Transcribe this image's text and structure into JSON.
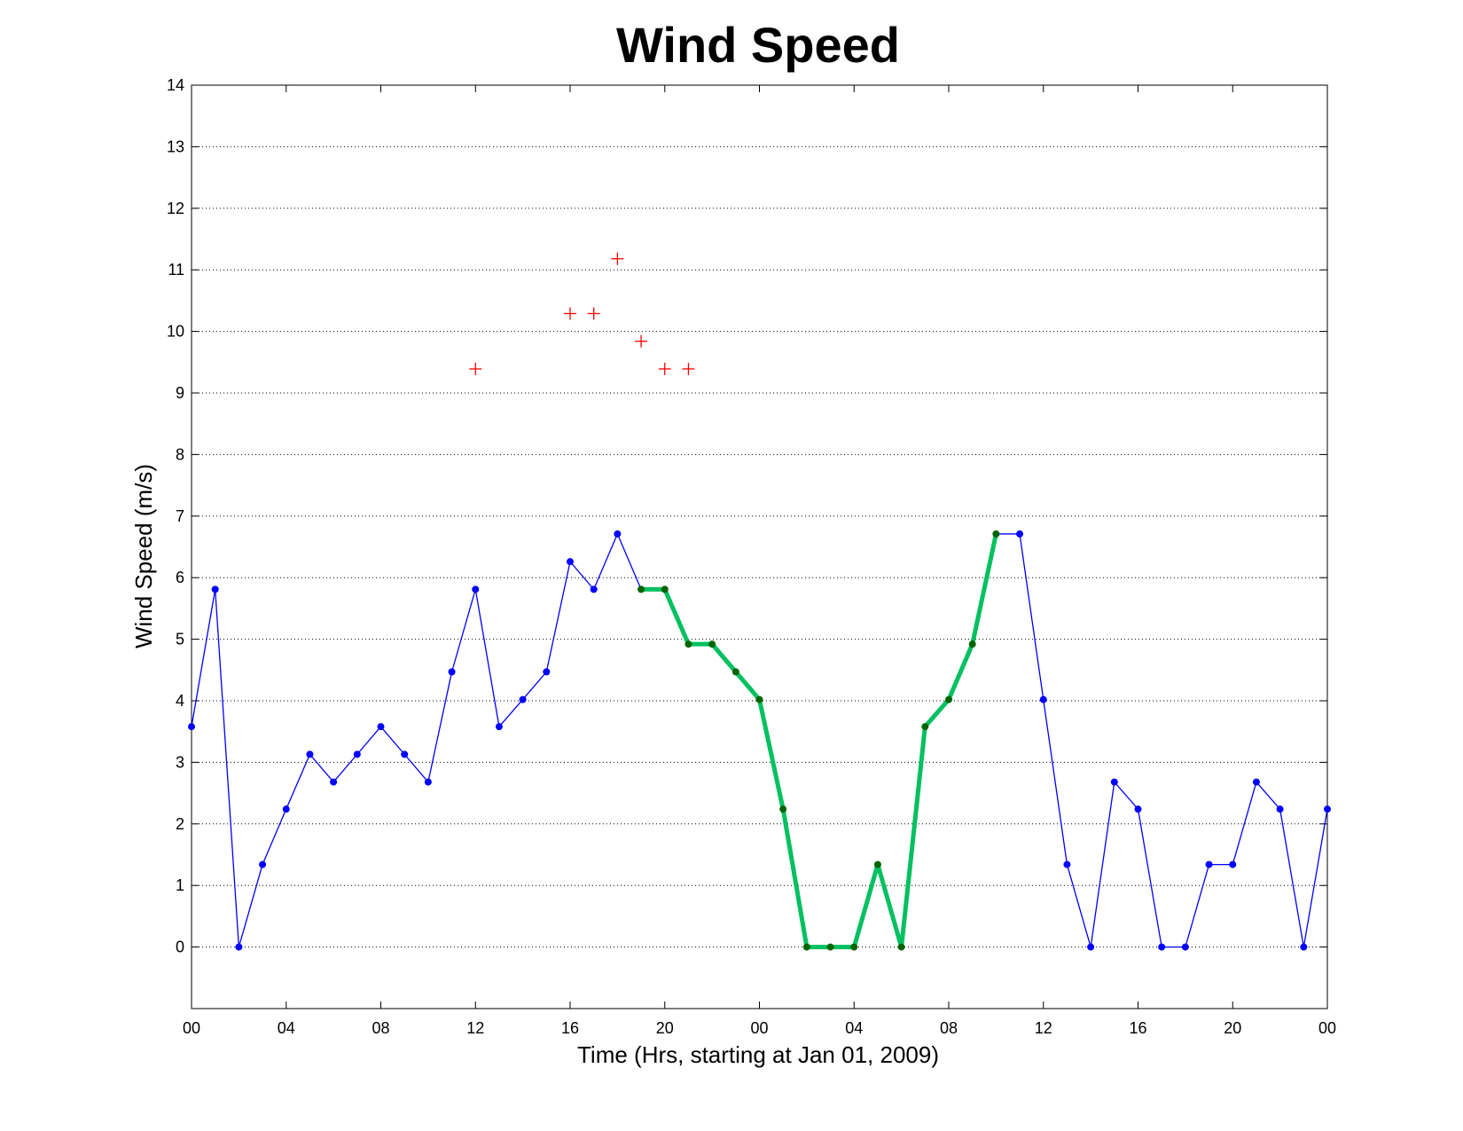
{
  "chart_data": {
    "type": "line",
    "title": "Wind Speed",
    "xlabel": "Time (Hrs, starting at Jan 01, 2009)",
    "ylabel": "Wind Speed (m/s)",
    "xlim": [
      0,
      48
    ],
    "ylim": [
      -1,
      14
    ],
    "x_ticks": [
      0,
      4,
      8,
      12,
      16,
      20,
      24,
      28,
      32,
      36,
      40,
      44,
      48
    ],
    "x_tick_labels": [
      "00",
      "04",
      "08",
      "12",
      "16",
      "20",
      "00",
      "04",
      "08",
      "12",
      "16",
      "20",
      "00"
    ],
    "y_ticks": [
      0,
      1,
      2,
      3,
      4,
      5,
      6,
      7,
      8,
      9,
      10,
      11,
      12,
      13,
      14
    ],
    "y_tick_labels": [
      "0",
      "1",
      "2",
      "3",
      "4",
      "5",
      "6",
      "7",
      "8",
      "9",
      "10",
      "11",
      "12",
      "13",
      "14"
    ],
    "grid": "horizontal dotted",
    "series": [
      {
        "style": "thin blue line with dot markers",
        "color": "#0000ff",
        "x": [
          0,
          1,
          2,
          3,
          4,
          5,
          6,
          7,
          8,
          9,
          10,
          11,
          12,
          13,
          14,
          15,
          16,
          17,
          18,
          19,
          20,
          21,
          22,
          23,
          24,
          25,
          26,
          27,
          28,
          29,
          30,
          31,
          32,
          33,
          34,
          35,
          36,
          37,
          38,
          39,
          40,
          41,
          42,
          43,
          44,
          45,
          46,
          47,
          48
        ],
        "values": [
          3.58,
          5.81,
          0,
          1.34,
          2.24,
          3.13,
          2.68,
          3.13,
          3.58,
          3.13,
          2.68,
          4.47,
          5.81,
          3.58,
          4.02,
          4.47,
          6.26,
          5.81,
          6.71,
          5.81,
          5.81,
          4.92,
          4.92,
          4.47,
          4.02,
          2.24,
          0,
          0,
          0,
          1.34,
          0,
          3.58,
          4.02,
          4.92,
          6.71,
          6.71,
          4.02,
          1.34,
          0,
          2.68,
          2.24,
          0,
          0,
          1.34,
          1.34,
          2.68,
          2.24,
          0,
          2.24
        ]
      },
      {
        "style": "thick green highlighted segment with dark green dot markers",
        "color": "#00c060",
        "marker_color": "#006400",
        "x": [
          19,
          20,
          21,
          22,
          23,
          24,
          25,
          26,
          27,
          28,
          29,
          30,
          31,
          32,
          33,
          34
        ],
        "values": [
          5.81,
          5.81,
          4.92,
          4.92,
          4.47,
          4.02,
          2.24,
          0,
          0,
          0,
          1.34,
          0,
          3.58,
          4.02,
          4.92,
          6.71
        ]
      },
      {
        "style": "red plus markers",
        "color": "#ff0000",
        "x": [
          12,
          16,
          17,
          18,
          19,
          20,
          21
        ],
        "values": [
          9.39,
          10.29,
          10.29,
          11.18,
          9.84,
          9.39,
          9.39
        ]
      }
    ]
  }
}
